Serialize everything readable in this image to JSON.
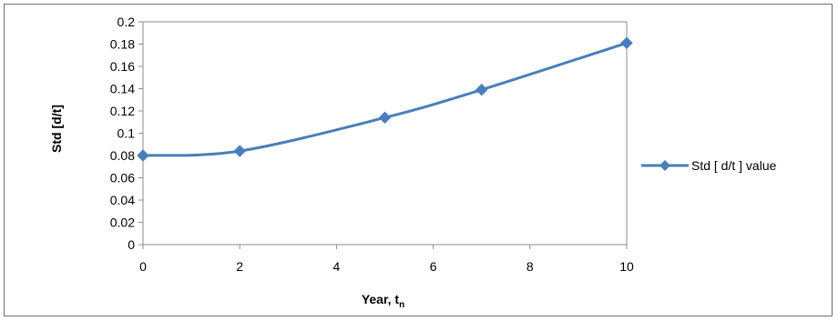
{
  "chart_data": {
    "type": "line",
    "title": "",
    "xlabel": "Year, t",
    "xlabel_subscript": "n",
    "ylabel": "Std [d/t]",
    "xlim": [
      0,
      10
    ],
    "ylim": [
      0,
      0.2
    ],
    "x_ticks": [
      "0",
      "2",
      "4",
      "6",
      "8",
      "10"
    ],
    "y_ticks": [
      "0",
      "0.02",
      "0.04",
      "0.06",
      "0.08",
      "0.1",
      "0.12",
      "0.14",
      "0.16",
      "0.18",
      "0.2"
    ],
    "grid": false,
    "smooth": true,
    "legend_position": "right",
    "series": [
      {
        "name": "Std [ d/t ] value",
        "color": "#4a7ebb",
        "marker": "diamond",
        "x": [
          0,
          2,
          5,
          7,
          10
        ],
        "y": [
          0.08,
          0.084,
          0.114,
          0.139,
          0.181
        ]
      }
    ]
  }
}
